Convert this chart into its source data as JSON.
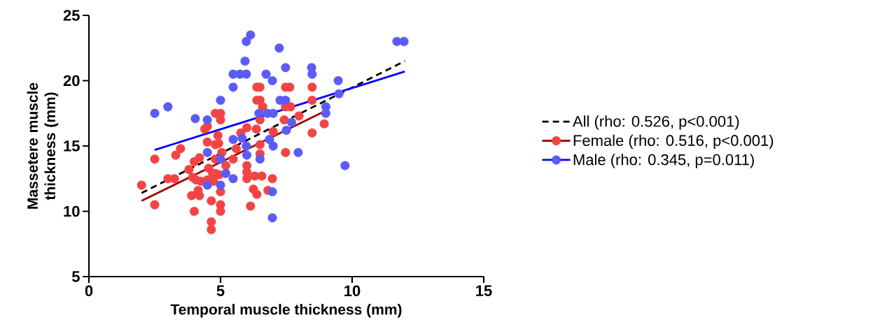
{
  "chart_data": {
    "type": "scatter",
    "xlabel": "Temporal muscle thickness (mm)",
    "ylabel": "Massetere muscle thickness (mm)",
    "xlim": [
      0,
      15
    ],
    "ylim": [
      5,
      25
    ],
    "xticks": [
      0,
      5,
      10,
      15
    ],
    "yticks": [
      5,
      10,
      15,
      20,
      25
    ],
    "grid": false,
    "legend": "right",
    "marker": "circle",
    "series": [
      {
        "name": "All (rho: 0.526, p<0.001)",
        "type": "line",
        "color": "#000000",
        "line_style": "dashed",
        "marker": "none",
        "x": [
          2,
          12
        ],
        "values": [
          11.4,
          21.5
        ]
      },
      {
        "name": "Female (rho: 0.516, p<0.001)",
        "color": "#f24444",
        "x": [
          2.0,
          2.5,
          2.5,
          3.48,
          3.3,
          3.0,
          3.25,
          3.8,
          4.0,
          4.2,
          3.94,
          4.07,
          4.26,
          3.9,
          4.15,
          4.2,
          4.0,
          4.65,
          4.65,
          4.65,
          5.0,
          5.0,
          5.0,
          4.4,
          4.5,
          4.8,
          5.0,
          5.0,
          4.9,
          4.5,
          4.8,
          4.93,
          4.55,
          4.7,
          4.8,
          4.5,
          4.74,
          4.95,
          4.8,
          5.05,
          5.2,
          5.48,
          5.6,
          5.77,
          6.0,
          6.38,
          6.38,
          6.36,
          6.0,
          6.0,
          6.0,
          6.3,
          6.25,
          6.38,
          6.14,
          6.5,
          6.5,
          6.6,
          6.5,
          7.47,
          7.63,
          8.48,
          8.48,
          7.47,
          7.66,
          7.98,
          7.42,
          7.0,
          8.94,
          8.48,
          6.5,
          6.5,
          7.47,
          6.57,
          6.97,
          6.8
        ],
        "values": [
          12.0,
          14.0,
          10.5,
          14.8,
          14.3,
          12.5,
          12.5,
          13.2,
          13.8,
          14.1,
          12.6,
          12.4,
          12.3,
          11.2,
          11.6,
          11.2,
          10.0,
          10.8,
          9.2,
          8.6,
          10.5,
          10.0,
          11.5,
          16.3,
          16.5,
          17.5,
          17.5,
          17.0,
          15.8,
          15.3,
          15.1,
          15.2,
          13.3,
          12.9,
          12.9,
          12.4,
          12.3,
          12.8,
          14.0,
          14.5,
          13.5,
          14.0,
          14.8,
          16.0,
          16.4,
          19.5,
          18.5,
          16.3,
          13.5,
          13.0,
          12.5,
          12.7,
          11.7,
          11.3,
          10.4,
          19.5,
          18.5,
          18.0,
          17.0,
          19.5,
          19.5,
          19.5,
          18.5,
          18.0,
          18.0,
          17.3,
          17.0,
          16.1,
          16.7,
          16.0,
          15.1,
          14.4,
          14.5,
          12.7,
          12.5,
          11.6
        ]
      },
      {
        "type": "line",
        "marker": "none",
        "color": "#a00000",
        "x": [
          2,
          9
        ],
        "values": [
          10.8,
          17.7
        ]
      },
      {
        "name": "Male (rho: 0.345, p=0.011)",
        "color": "#5b5bf5",
        "x": [
          2.5,
          3.0,
          4.04,
          4.5,
          5.0,
          5.48,
          5.48,
          5.74,
          5.98,
          5.93,
          5.98,
          6.14,
          4.5,
          5.0,
          5.48,
          5.82,
          5.98,
          6.0,
          5.2,
          5.48,
          4.5,
          5.0,
          6.46,
          7.23,
          7.47,
          8.46,
          8.48,
          6.73,
          6.97,
          9.47,
          9.5,
          7.26,
          7.47,
          6.78,
          7.0,
          9.0,
          9.0,
          7.7,
          7.5,
          6.86,
          7.0,
          6.5,
          7.95,
          9.73,
          6.97,
          6.97,
          11.7,
          11.97
        ],
        "values": [
          17.5,
          18.0,
          17.1,
          17.0,
          18.5,
          19.5,
          20.5,
          20.5,
          20.5,
          21.5,
          23.0,
          23.5,
          14.5,
          14.0,
          15.5,
          15.6,
          15.0,
          14.3,
          12.9,
          12.5,
          12.0,
          12.0,
          17.5,
          22.5,
          21.0,
          21.0,
          20.5,
          20.5,
          20.0,
          20.0,
          19.0,
          18.5,
          18.5,
          17.5,
          17.5,
          18.0,
          17.5,
          16.8,
          16.2,
          15.5,
          15.0,
          14.0,
          14.5,
          13.5,
          11.5,
          9.5,
          23.0,
          23.0
        ]
      },
      {
        "type": "line",
        "marker": "none",
        "color": "#0000ff",
        "x": [
          2.5,
          12
        ],
        "values": [
          14.7,
          20.7
        ]
      }
    ]
  }
}
